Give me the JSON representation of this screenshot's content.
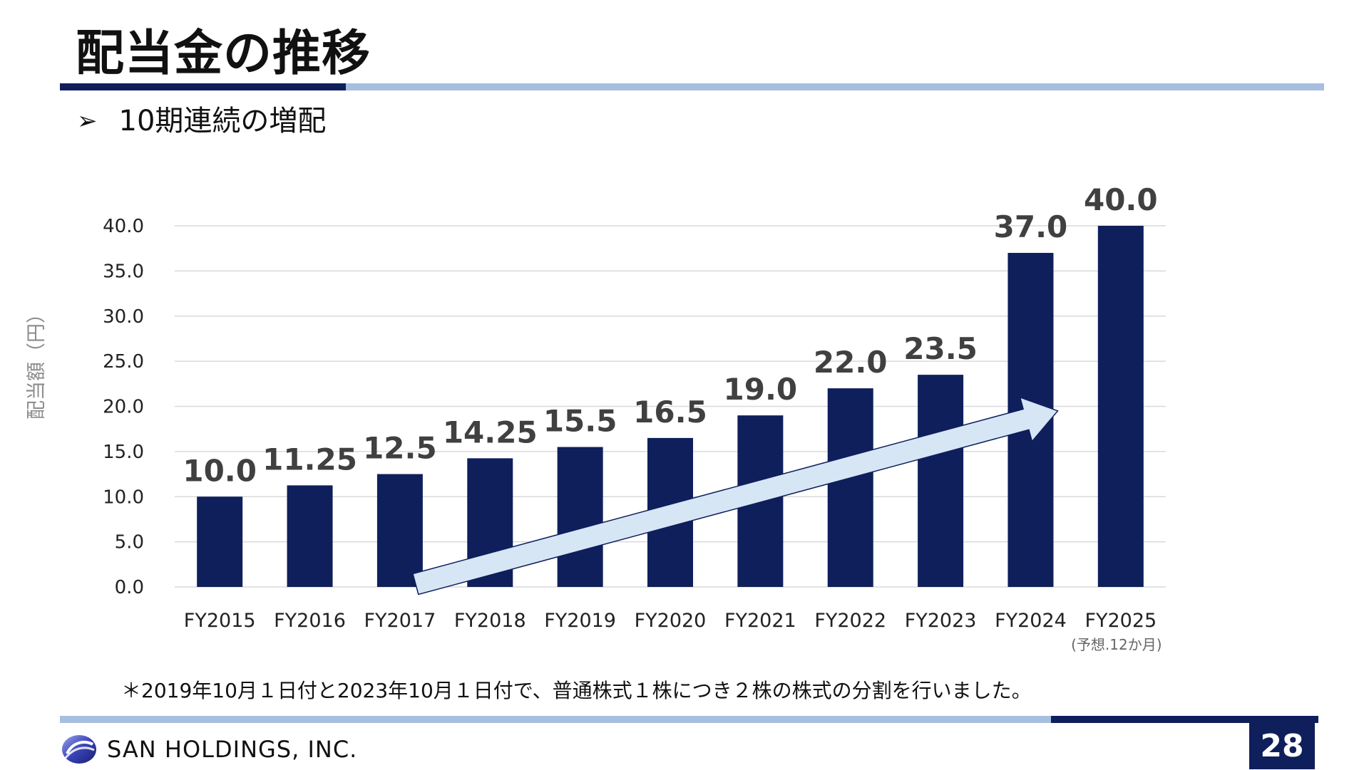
{
  "page": {
    "title": "配当金の推移",
    "subtitle": "10期連続の増配",
    "subtitle_bullet": "➢",
    "footnote": "＊2019年10月１日付と2023年10月１日付で、普通株式１株につき２株の株式の分割を行いました。",
    "company_name": "SAN HOLDINGS, INC.",
    "page_number": "28"
  },
  "chart_data": {
    "type": "bar",
    "categories": [
      "FY2015",
      "FY2016",
      "FY2017",
      "FY2018",
      "FY2019",
      "FY2020",
      "FY2021",
      "FY2022",
      "FY2023",
      "FY2024",
      "FY2025"
    ],
    "category_notes": [
      "",
      "",
      "",
      "",
      "",
      "",
      "",
      "",
      "",
      "",
      "(予想.12か月)"
    ],
    "values": [
      10.0,
      11.25,
      12.5,
      14.25,
      15.5,
      16.5,
      19.0,
      22.0,
      23.5,
      37.0,
      40.0
    ],
    "data_labels": [
      "10.0",
      "11.25",
      "12.5",
      "14.25",
      "15.5",
      "16.5",
      "19.0",
      "22.0",
      "23.5",
      "37.0",
      "40.0"
    ],
    "ylabel": "配当額（円）",
    "yticks": [
      0,
      5,
      10,
      15,
      20,
      25,
      30,
      35,
      40
    ],
    "ytick_labels": [
      "0.0",
      "5.0",
      "10.0",
      "15.0",
      "20.0",
      "25.0",
      "30.0",
      "35.0",
      "40.0"
    ],
    "ylim": [
      0,
      40
    ],
    "grid": true,
    "legend": "none",
    "trend_arrow": true
  },
  "colors": {
    "bar": "#0f1f5c",
    "accent_dark": "#0f1f5c",
    "accent_light": "#a7bedf",
    "arrow_fill": "#d6e6f5",
    "arrow_stroke": "#0f1f5c",
    "gridline": "#d9d9d9",
    "axis_text": "#222222",
    "data_label": "#404040",
    "y_title": "#8c8c8c"
  },
  "icons": {
    "logo": "swirl-logo-icon",
    "bullet": "arrow-bullet-icon"
  }
}
